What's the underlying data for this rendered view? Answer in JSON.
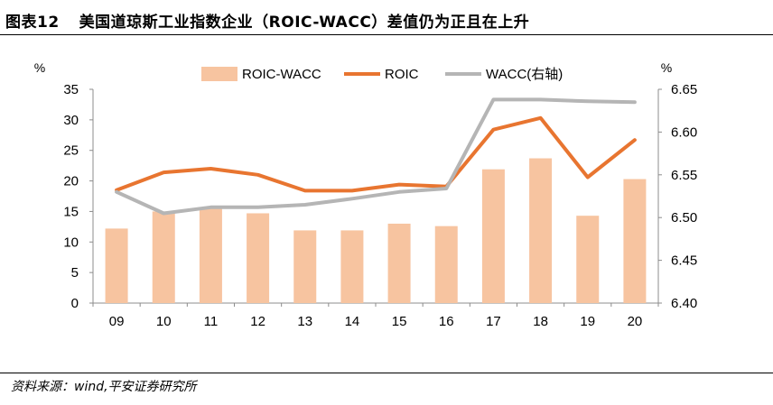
{
  "header": {
    "figure_number": "图表12",
    "title": "美国道琼斯工业指数企业（ROIC-WACC）差值仍为正且在上升"
  },
  "footer": {
    "source": "资料来源：wind,平安证券研究所"
  },
  "chart_data": {
    "type": "bar",
    "categories": [
      "09",
      "10",
      "11",
      "12",
      "13",
      "14",
      "15",
      "16",
      "17",
      "18",
      "19",
      "20"
    ],
    "left_axis": {
      "unit": "%",
      "ylim": [
        0,
        35
      ],
      "ticks": [
        "0",
        "5",
        "10",
        "15",
        "20",
        "25",
        "30",
        "35"
      ]
    },
    "right_axis": {
      "unit": "%",
      "ylim": [
        6.4,
        6.65
      ],
      "ticks": [
        "6.40",
        "6.45",
        "6.50",
        "6.55",
        "6.60",
        "6.65"
      ]
    },
    "series": [
      {
        "name": "ROIC-WACC",
        "type": "bar",
        "axis": "left",
        "color": "#f7c4a0",
        "values": [
          12.2,
          15.0,
          15.6,
          14.7,
          11.9,
          11.9,
          13.0,
          12.6,
          21.9,
          23.7,
          14.3,
          20.3
        ]
      },
      {
        "name": "ROIC",
        "type": "line",
        "axis": "left",
        "color": "#e87530",
        "values": [
          18.5,
          21.4,
          22.0,
          21.0,
          18.4,
          18.4,
          19.4,
          19.1,
          28.4,
          30.3,
          20.6,
          26.7
        ]
      },
      {
        "name": "WACC(右轴)",
        "type": "line",
        "axis": "right",
        "color": "#b5b5b5",
        "values": [
          6.53,
          6.505,
          6.512,
          6.512,
          6.515,
          6.522,
          6.53,
          6.534,
          6.638,
          6.638,
          6.636,
          6.635
        ]
      }
    ],
    "legend_position": "top"
  }
}
